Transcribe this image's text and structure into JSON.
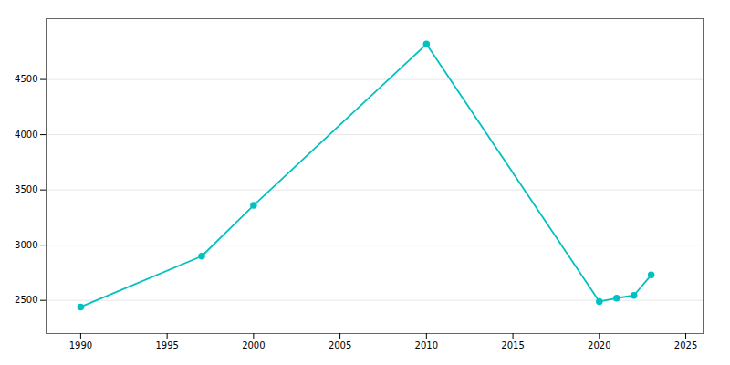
{
  "chart_data": {
    "type": "line",
    "x": [
      1990,
      1997,
      2000,
      2010,
      2020,
      2021,
      2022,
      2023
    ],
    "values": [
      2440,
      2900,
      3360,
      4820,
      2490,
      2520,
      2545,
      2730
    ],
    "color": "#00C0C0",
    "marker": "circle",
    "xlim": [
      1988,
      2026
    ],
    "ylim": [
      2200,
      5050
    ],
    "xticks": [
      1990,
      1995,
      2000,
      2005,
      2010,
      2015,
      2020,
      2025
    ],
    "yticks": [
      2500,
      3000,
      3500,
      4000,
      4500
    ],
    "grid": "y"
  }
}
